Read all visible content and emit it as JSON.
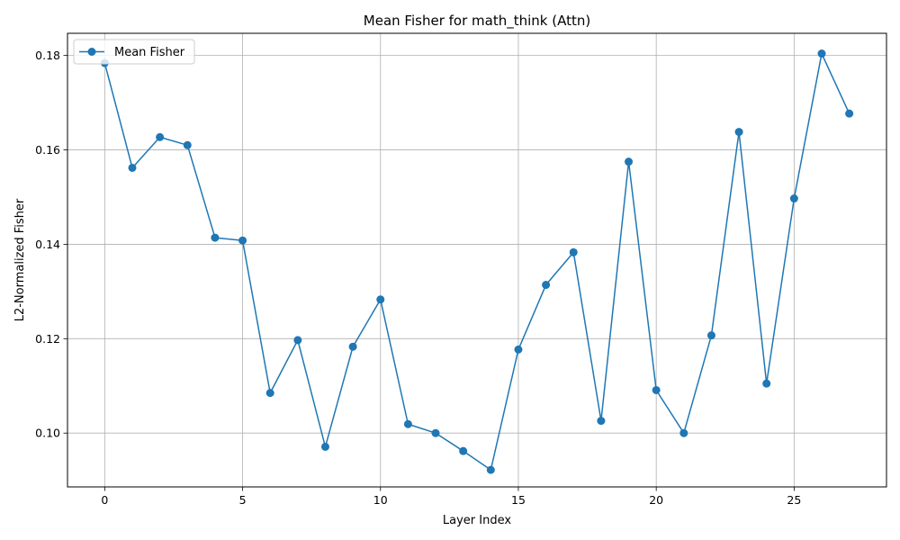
{
  "chart_data": {
    "type": "line",
    "title": "Mean Fisher for math_think (Attn)",
    "xlabel": "Layer Index",
    "ylabel": "L2-Normalized Fisher",
    "xlim": [
      -1.35,
      28.35
    ],
    "ylim": [
      0.0886,
      0.1847
    ],
    "xticks": [
      0,
      5,
      10,
      15,
      20,
      25
    ],
    "xtick_labels": [
      "0",
      "5",
      "10",
      "15",
      "20",
      "25"
    ],
    "yticks": [
      0.1,
      0.12,
      0.14,
      0.16,
      0.18
    ],
    "ytick_labels": [
      "0.10",
      "0.12",
      "0.14",
      "0.16",
      "0.18"
    ],
    "grid": true,
    "legend_position": "top-left",
    "series": [
      {
        "name": "Mean Fisher",
        "color": "#1f77b4",
        "marker": "circle",
        "x": [
          0,
          1,
          2,
          3,
          4,
          5,
          6,
          7,
          8,
          9,
          10,
          11,
          12,
          13,
          14,
          15,
          16,
          17,
          18,
          19,
          20,
          21,
          22,
          23,
          24,
          25,
          26,
          27
        ],
        "y": [
          0.1784,
          0.1562,
          0.1627,
          0.161,
          0.1414,
          0.1408,
          0.1085,
          0.1197,
          0.0971,
          0.1183,
          0.1283,
          0.1019,
          0.1,
          0.0962,
          0.0922,
          0.1177,
          0.1314,
          0.1383,
          0.1026,
          0.1575,
          0.1091,
          0.1,
          0.1207,
          0.1638,
          0.1105,
          0.1497,
          0.1804,
          0.1677
        ]
      }
    ]
  }
}
